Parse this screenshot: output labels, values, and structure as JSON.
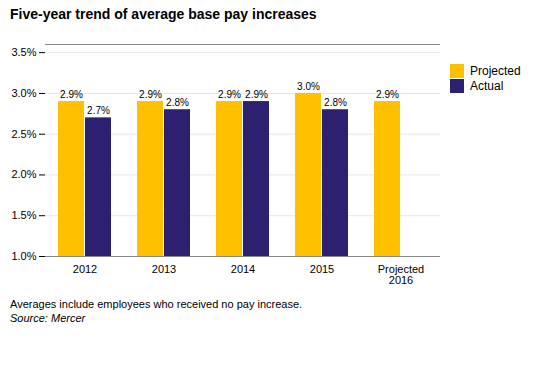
{
  "chart_data": {
    "type": "bar",
    "title": "Five-year trend of average base pay increases",
    "categories": [
      "2012",
      "2013",
      "2014",
      "2015",
      "Projected\n2016"
    ],
    "series": [
      {
        "name": "Projected",
        "color": "#FFC000",
        "values": [
          2.9,
          2.9,
          2.9,
          3.0,
          2.9
        ],
        "value_labels": [
          "2.9%",
          "2.9%",
          "2.9%",
          "3.0%",
          "2.9%"
        ]
      },
      {
        "name": "Actual",
        "color": "#2E2070",
        "values": [
          2.7,
          2.8,
          2.9,
          2.8,
          null
        ],
        "value_labels": [
          "2.7%",
          "2.8%",
          "2.9%",
          "2.8%",
          null
        ]
      }
    ],
    "ylim": [
      1.0,
      3.6
    ],
    "yticks": [
      {
        "value": 1.0,
        "label": "1.0%"
      },
      {
        "value": 1.5,
        "label": "1.5%"
      },
      {
        "value": 2.0,
        "label": "2.0%"
      },
      {
        "value": 2.5,
        "label": "2.5%"
      },
      {
        "value": 3.0,
        "label": "3.0%"
      },
      {
        "value": 3.5,
        "label": "3.5%"
      }
    ],
    "grid": true,
    "legend": "right",
    "data_labels": true,
    "annotations": [
      "Averages include employees who received no pay increase.",
      "Source: Mercer"
    ]
  }
}
